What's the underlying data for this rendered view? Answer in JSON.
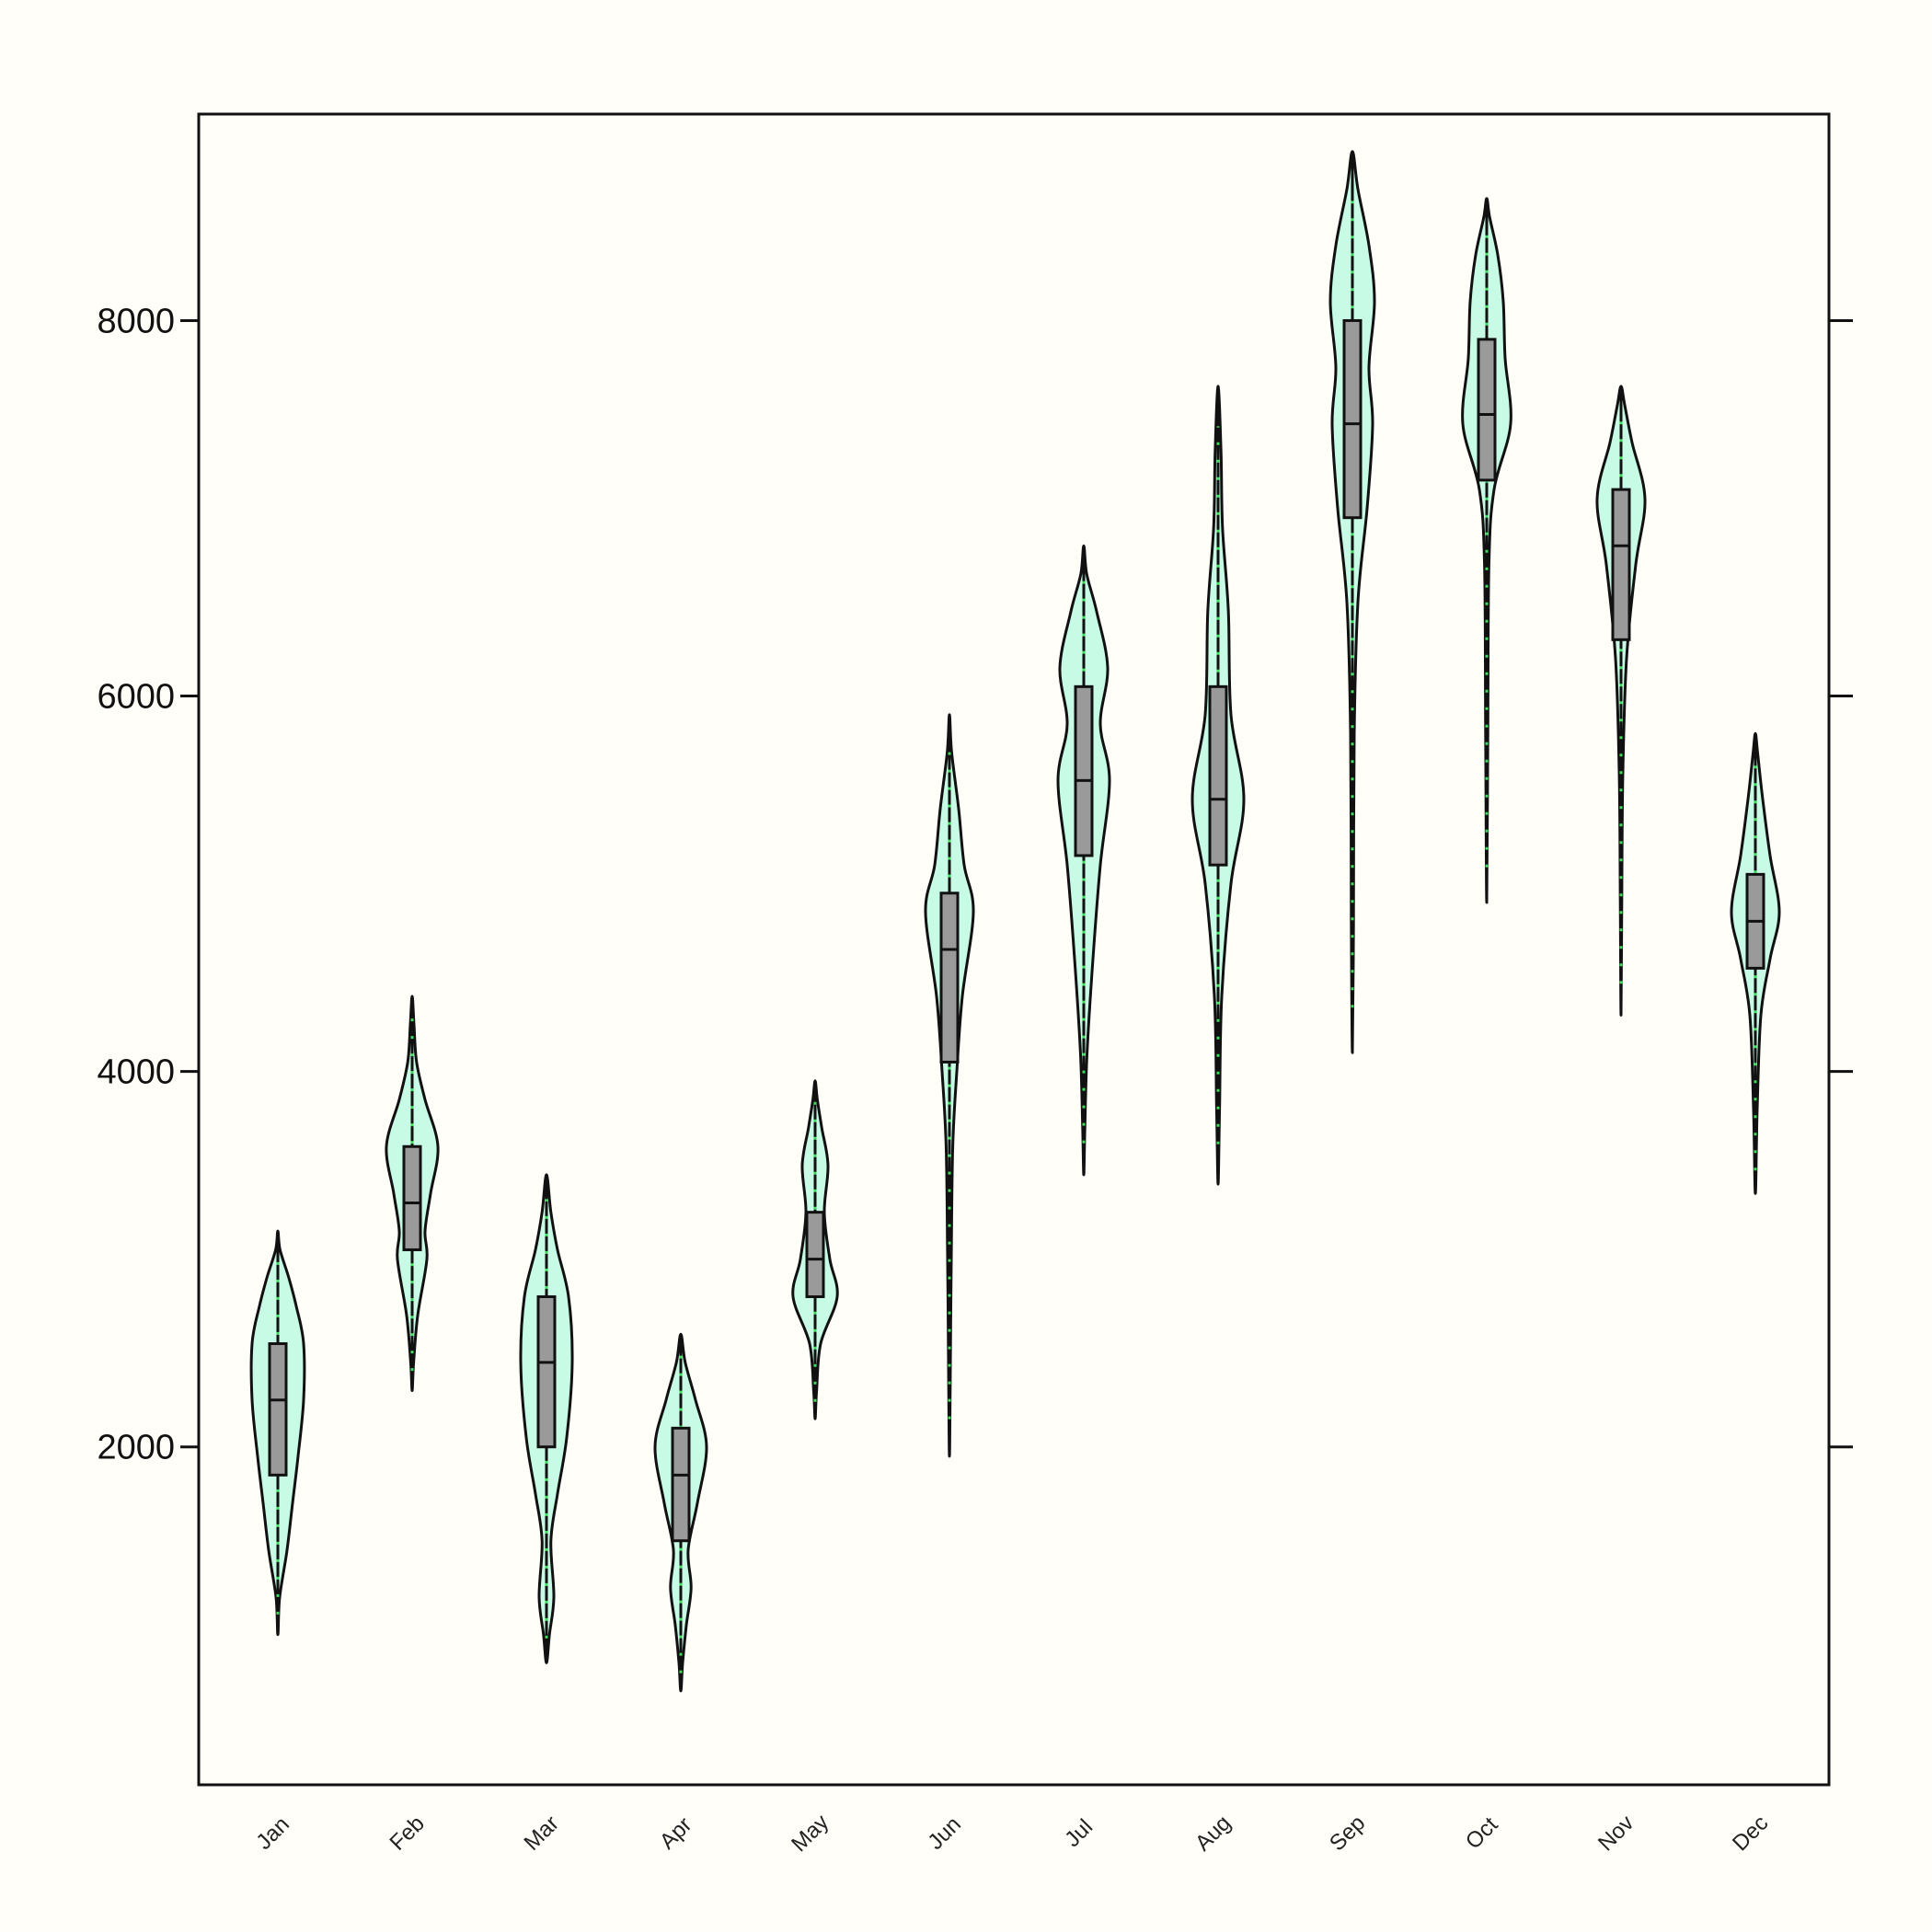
{
  "colors": {
    "background": "#fffef9",
    "violin_fill": "#c8fbe6",
    "violin_stroke": "#111111",
    "box_fill": "#9a9a9a",
    "points": "#3ddc5a",
    "axis": "#111111"
  },
  "chart_data": {
    "type": "violin",
    "title": "",
    "xlabel": "",
    "ylabel": "",
    "ylim": [
      200,
      9100
    ],
    "yticks": [
      2000,
      4000,
      6000,
      8000
    ],
    "ytick_labels": [
      "2000",
      "4000",
      "6000",
      "8000"
    ],
    "grid": false,
    "categories": [
      "Jan",
      "Feb",
      "Mar",
      "Apr",
      "May",
      "Jun",
      "Jul",
      "Aug",
      "Sep",
      "Oct",
      "Nov",
      "Dec"
    ],
    "groups": [
      {
        "min": 1000,
        "max": 3150,
        "q1": 1850,
        "median": 2250,
        "q3": 2550,
        "density": [
          [
            1000,
            0
          ],
          [
            1200,
            0.05
          ],
          [
            1450,
            0.25
          ],
          [
            1700,
            0.4
          ],
          [
            1950,
            0.55
          ],
          [
            2250,
            0.7
          ],
          [
            2550,
            0.7
          ],
          [
            2750,
            0.5
          ],
          [
            2900,
            0.3
          ],
          [
            3050,
            0.06
          ],
          [
            3150,
            0
          ]
        ]
      },
      {
        "min": 2300,
        "max": 4400,
        "q1": 3050,
        "median": 3300,
        "q3": 3600,
        "density": [
          [
            2300,
            0
          ],
          [
            2450,
            0.04
          ],
          [
            2700,
            0.15
          ],
          [
            3000,
            0.4
          ],
          [
            3150,
            0.35
          ],
          [
            3350,
            0.5
          ],
          [
            3600,
            0.7
          ],
          [
            3850,
            0.35
          ],
          [
            4050,
            0.12
          ],
          [
            4250,
            0.05
          ],
          [
            4400,
            0
          ]
        ]
      },
      {
        "min": 850,
        "max": 3450,
        "q1": 2000,
        "median": 2450,
        "q3": 2800,
        "density": [
          [
            850,
            0
          ],
          [
            1000,
            0.08
          ],
          [
            1200,
            0.2
          ],
          [
            1500,
            0.12
          ],
          [
            1750,
            0.3
          ],
          [
            2050,
            0.55
          ],
          [
            2450,
            0.7
          ],
          [
            2800,
            0.6
          ],
          [
            3050,
            0.3
          ],
          [
            3250,
            0.12
          ],
          [
            3450,
            0
          ]
        ]
      },
      {
        "min": 700,
        "max": 2600,
        "q1": 1500,
        "median": 1850,
        "q3": 2100,
        "density": [
          [
            700,
            0
          ],
          [
            850,
            0.05
          ],
          [
            1050,
            0.15
          ],
          [
            1250,
            0.28
          ],
          [
            1450,
            0.2
          ],
          [
            1700,
            0.45
          ],
          [
            2000,
            0.7
          ],
          [
            2250,
            0.4
          ],
          [
            2450,
            0.12
          ],
          [
            2600,
            0
          ]
        ]
      },
      {
        "min": 2150,
        "max": 3950,
        "q1": 2800,
        "median": 3000,
        "q3": 3250,
        "density": [
          [
            2150,
            0
          ],
          [
            2300,
            0.04
          ],
          [
            2550,
            0.15
          ],
          [
            2800,
            0.6
          ],
          [
            3000,
            0.4
          ],
          [
            3250,
            0.25
          ],
          [
            3500,
            0.35
          ],
          [
            3700,
            0.18
          ],
          [
            3850,
            0.06
          ],
          [
            3950,
            0
          ]
        ]
      },
      {
        "min": 1950,
        "max": 5900,
        "q1": 4050,
        "median": 4650,
        "q3": 4950,
        "density": [
          [
            1950,
            0
          ],
          [
            2300,
            0.02
          ],
          [
            3000,
            0.05
          ],
          [
            3600,
            0.09
          ],
          [
            4000,
            0.2
          ],
          [
            4400,
            0.35
          ],
          [
            4850,
            0.65
          ],
          [
            5100,
            0.4
          ],
          [
            5400,
            0.25
          ],
          [
            5700,
            0.06
          ],
          [
            5900,
            0
          ]
        ]
      },
      {
        "min": 3450,
        "max": 6800,
        "q1": 5150,
        "median": 5550,
        "q3": 6050,
        "density": [
          [
            3450,
            0
          ],
          [
            3700,
            0.03
          ],
          [
            4100,
            0.09
          ],
          [
            4600,
            0.25
          ],
          [
            5100,
            0.45
          ],
          [
            5550,
            0.7
          ],
          [
            5850,
            0.45
          ],
          [
            6150,
            0.65
          ],
          [
            6450,
            0.35
          ],
          [
            6650,
            0.08
          ],
          [
            6800,
            0
          ]
        ]
      },
      {
        "min": 3400,
        "max": 7650,
        "q1": 5100,
        "median": 5450,
        "q3": 6050,
        "density": [
          [
            3400,
            0
          ],
          [
            3800,
            0.04
          ],
          [
            4400,
            0.1
          ],
          [
            5000,
            0.35
          ],
          [
            5450,
            0.7
          ],
          [
            5900,
            0.35
          ],
          [
            6450,
            0.28
          ],
          [
            6900,
            0.12
          ],
          [
            7300,
            0.08
          ],
          [
            7650,
            0
          ]
        ]
      },
      {
        "min": 4100,
        "max": 8900,
        "q1": 6950,
        "median": 7450,
        "q3": 8000,
        "density": [
          [
            4100,
            0
          ],
          [
            4800,
            0.03
          ],
          [
            5800,
            0.05
          ],
          [
            6500,
            0.15
          ],
          [
            7000,
            0.4
          ],
          [
            7450,
            0.55
          ],
          [
            7750,
            0.45
          ],
          [
            8100,
            0.6
          ],
          [
            8400,
            0.45
          ],
          [
            8700,
            0.15
          ],
          [
            8900,
            0
          ]
        ]
      },
      {
        "min": 4900,
        "max": 8650,
        "q1": 7150,
        "median": 7500,
        "q3": 7900,
        "density": [
          [
            4900,
            0
          ],
          [
            5800,
            0.03
          ],
          [
            6700,
            0.06
          ],
          [
            7100,
            0.2
          ],
          [
            7450,
            0.65
          ],
          [
            7800,
            0.5
          ],
          [
            8100,
            0.45
          ],
          [
            8350,
            0.3
          ],
          [
            8550,
            0.08
          ],
          [
            8650,
            0
          ]
        ]
      },
      {
        "min": 4300,
        "max": 7650,
        "q1": 6300,
        "median": 6800,
        "q3": 7100,
        "density": [
          [
            4300,
            0
          ],
          [
            4900,
            0.02
          ],
          [
            5600,
            0.05
          ],
          [
            6200,
            0.15
          ],
          [
            6700,
            0.4
          ],
          [
            7050,
            0.65
          ],
          [
            7350,
            0.3
          ],
          [
            7550,
            0.1
          ],
          [
            7650,
            0
          ]
        ]
      },
      {
        "min": 3350,
        "max": 5800,
        "q1": 4550,
        "median": 4800,
        "q3": 5050,
        "density": [
          [
            3350,
            0
          ],
          [
            3800,
            0.05
          ],
          [
            4300,
            0.15
          ],
          [
            4600,
            0.4
          ],
          [
            4850,
            0.65
          ],
          [
            5150,
            0.4
          ],
          [
            5450,
            0.2
          ],
          [
            5700,
            0.06
          ],
          [
            5800,
            0
          ]
        ]
      }
    ]
  }
}
